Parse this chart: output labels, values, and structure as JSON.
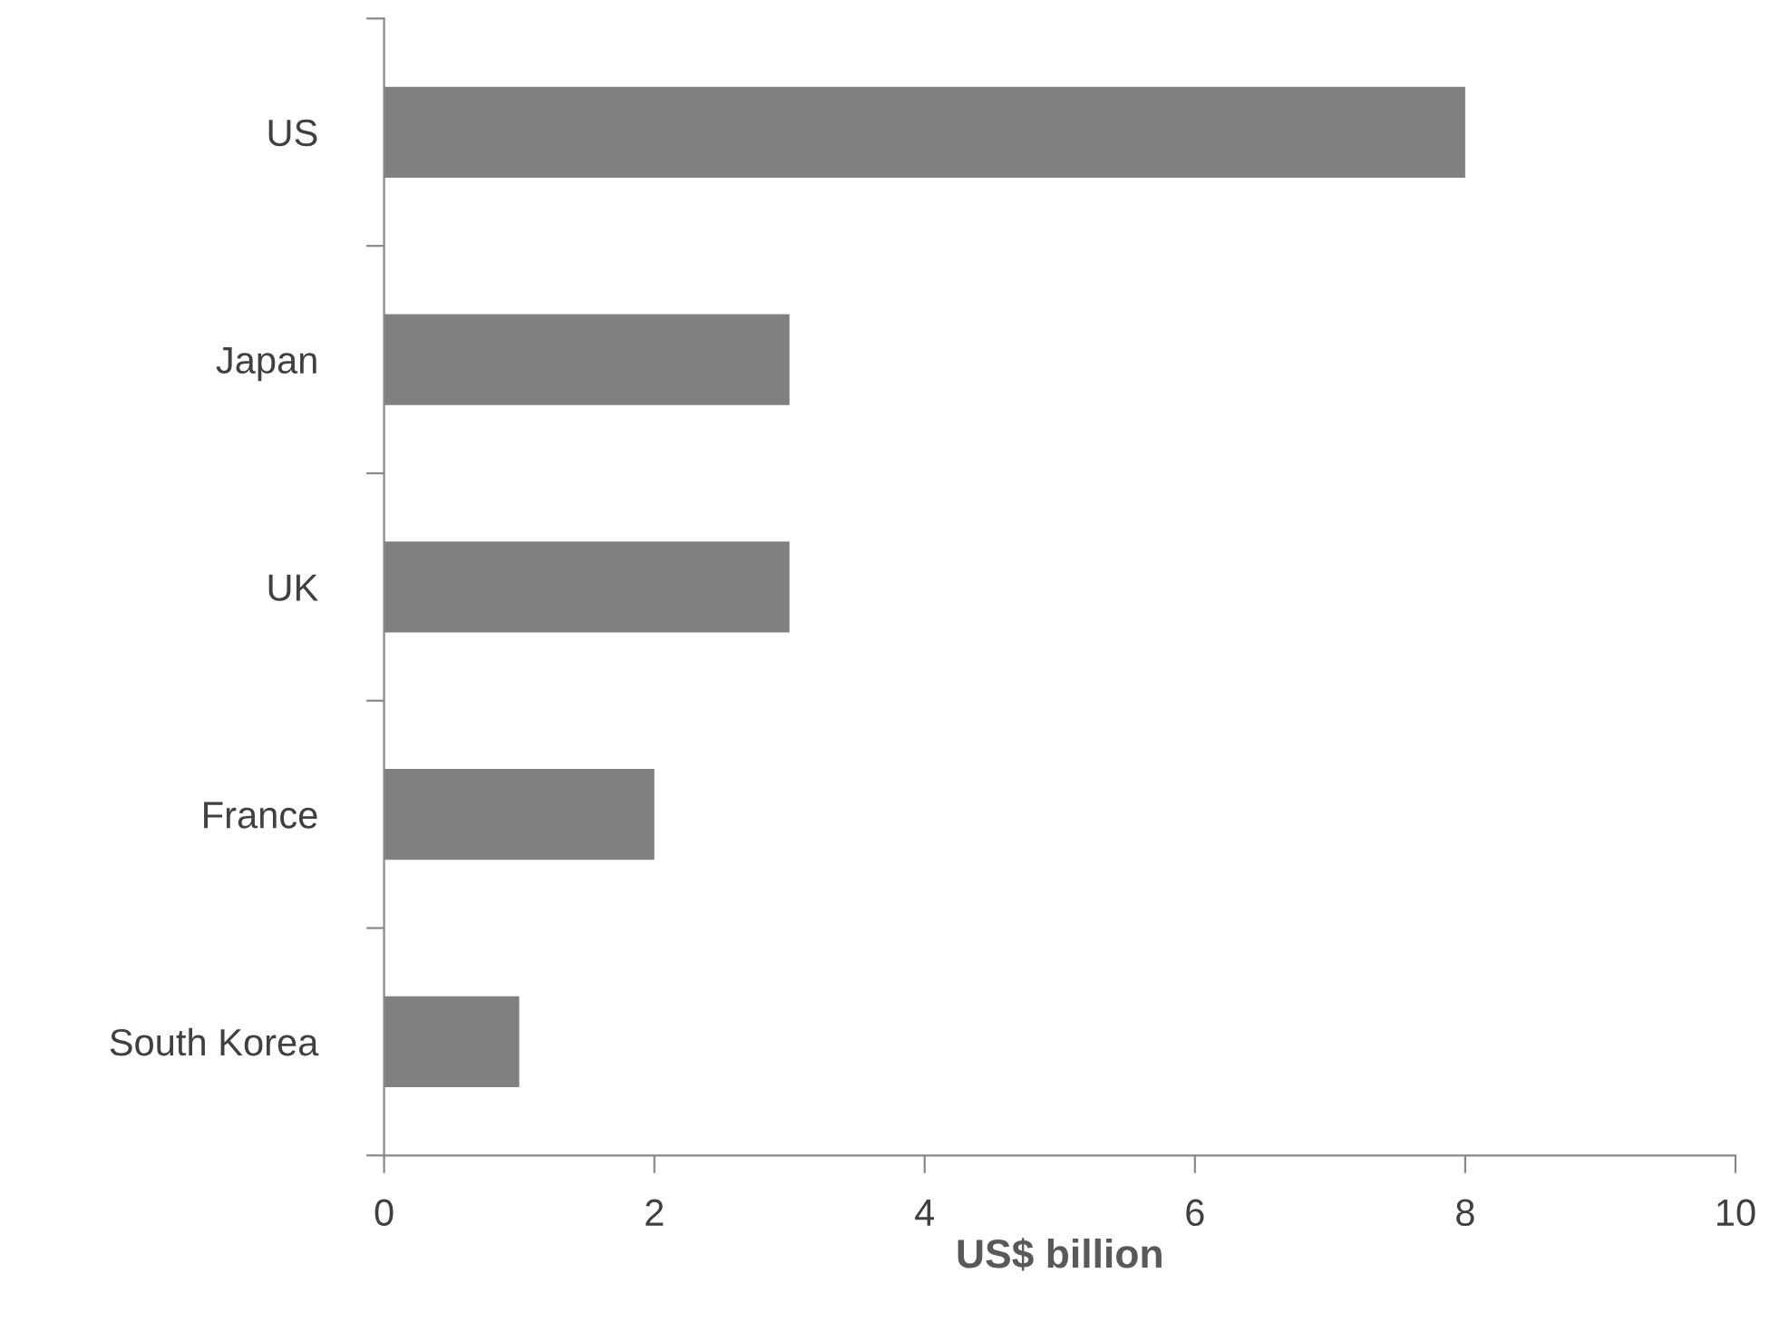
{
  "chart_data": {
    "type": "bar",
    "orientation": "horizontal",
    "xlabel": "US$ billion",
    "categories": [
      "US",
      "Japan",
      "UK",
      "France",
      "South Korea"
    ],
    "values": [
      8,
      3,
      3,
      2,
      1
    ],
    "color": "#808080",
    "xlim": [
      0,
      10
    ],
    "xticks": [
      0,
      2,
      4,
      6,
      8,
      10
    ],
    "grid": false,
    "legend": false
  }
}
